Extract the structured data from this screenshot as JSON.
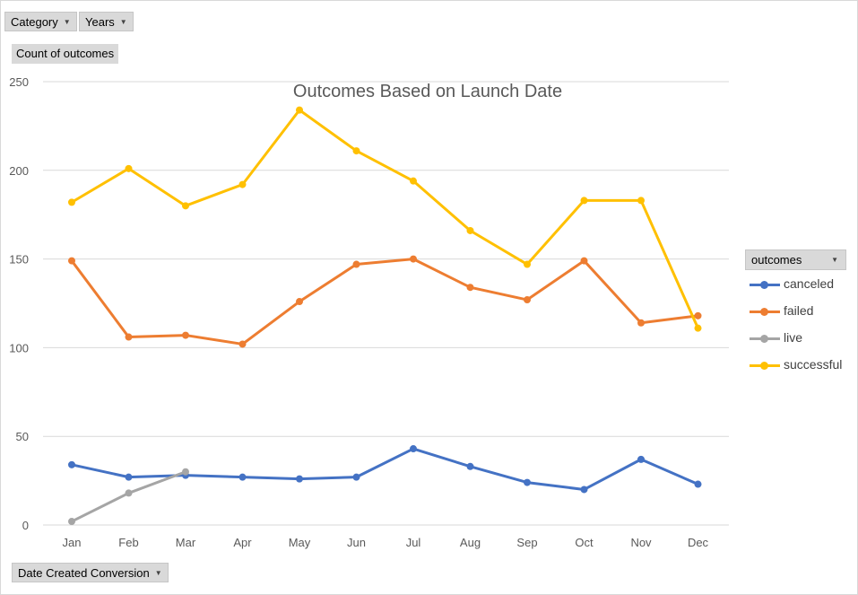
{
  "filters": {
    "category_label": "Category",
    "years_label": "Years",
    "value_field_label": "Count of outcomes",
    "axis_field_label": "Date Created Conversion"
  },
  "legend": {
    "title": "outcomes"
  },
  "colors": {
    "canceled": "#4472c4",
    "failed": "#ed7d31",
    "live": "#a5a5a5",
    "successful": "#ffc000",
    "gridline": "#d9d9d9",
    "axis_text": "#595959"
  },
  "chart_data": {
    "type": "line",
    "title": "Outcomes Based on Launch Date",
    "xlabel": "",
    "ylabel": "",
    "categories": [
      "Jan",
      "Feb",
      "Mar",
      "Apr",
      "May",
      "Jun",
      "Jul",
      "Aug",
      "Sep",
      "Oct",
      "Nov",
      "Dec"
    ],
    "ylim": [
      0,
      250
    ],
    "yticks": [
      0,
      50,
      100,
      150,
      200,
      250
    ],
    "grid": true,
    "legend_position": "right",
    "series": [
      {
        "name": "canceled",
        "values": [
          34,
          27,
          28,
          27,
          26,
          27,
          43,
          33,
          24,
          20,
          37,
          23
        ]
      },
      {
        "name": "failed",
        "values": [
          149,
          106,
          107,
          102,
          126,
          147,
          150,
          134,
          127,
          149,
          114,
          118
        ]
      },
      {
        "name": "live",
        "values": [
          2,
          18,
          30,
          null,
          null,
          null,
          null,
          null,
          null,
          null,
          null,
          null
        ]
      },
      {
        "name": "successful",
        "values": [
          182,
          201,
          180,
          192,
          234,
          211,
          194,
          166,
          147,
          183,
          183,
          111
        ]
      }
    ]
  }
}
